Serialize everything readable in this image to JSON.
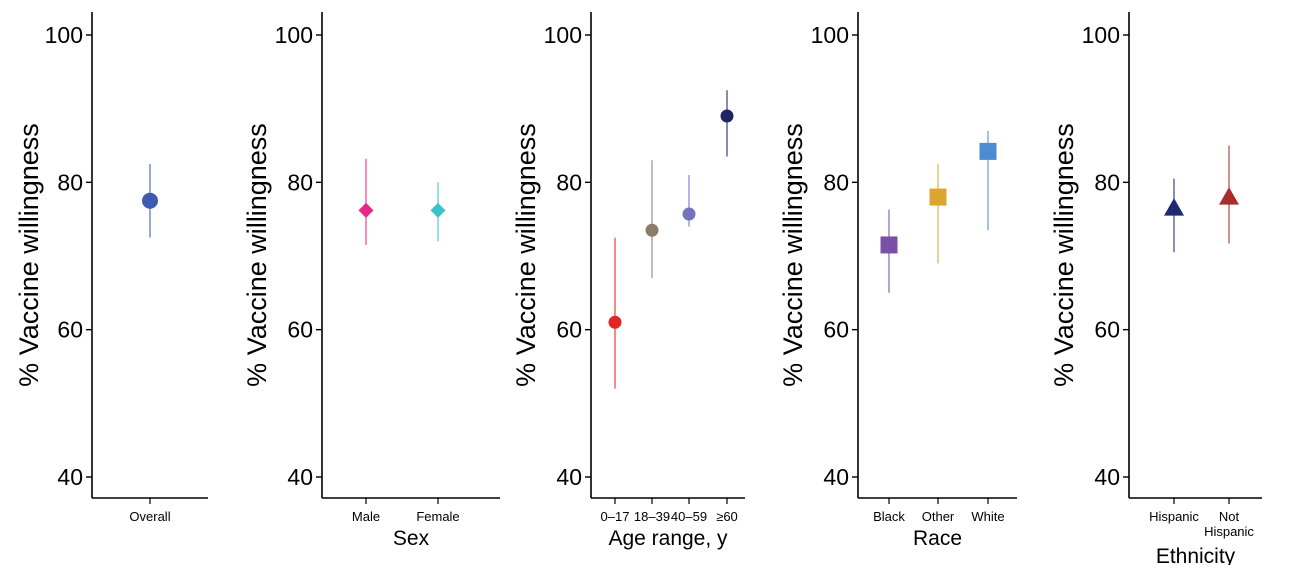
{
  "chart_data": [
    {
      "type": "scatter",
      "title": "",
      "xlabel": "",
      "ylabel": "% Vaccine willingness",
      "ylim": [
        40,
        100
      ],
      "yticks": [
        40,
        60,
        80,
        100
      ],
      "error_bars": true,
      "categories": [
        "Overall"
      ],
      "points": [
        {
          "category": "Overall",
          "value": 77.5,
          "lower": 72.5,
          "upper": 82.5,
          "color": "#3d5ab4",
          "marker": "circle"
        }
      ]
    },
    {
      "type": "scatter",
      "title": "",
      "xlabel": "Sex",
      "ylabel": "% Vaccine willingness",
      "ylim": [
        40,
        100
      ],
      "yticks": [
        40,
        60,
        80,
        100
      ],
      "error_bars": true,
      "categories": [
        "Male",
        "Female"
      ],
      "points": [
        {
          "category": "Male",
          "value": 76.2,
          "lower": 71.5,
          "upper": 83.2,
          "color": "#e6288c",
          "marker": "diamond"
        },
        {
          "category": "Female",
          "value": 76.2,
          "lower": 72.0,
          "upper": 80.0,
          "color": "#3cc3c8",
          "marker": "diamond"
        }
      ]
    },
    {
      "type": "scatter",
      "title": "",
      "xlabel": "Age range, y",
      "ylabel": "% Vaccine willingness",
      "ylim": [
        40,
        100
      ],
      "yticks": [
        40,
        60,
        80,
        100
      ],
      "error_bars": true,
      "categories": [
        "0–17",
        "18–39",
        "40–59",
        "≥60"
      ],
      "points": [
        {
          "category": "0–17",
          "value": 61.0,
          "lower": 52.0,
          "upper": 72.5,
          "color": "#e62323",
          "marker": "circle"
        },
        {
          "category": "18–39",
          "value": 73.5,
          "lower": 67.0,
          "upper": 83.0,
          "color": "#8c7d69",
          "marker": "circle"
        },
        {
          "category": "40–59",
          "value": 75.7,
          "lower": 74.0,
          "upper": 81.0,
          "color": "#7373be",
          "marker": "circle"
        },
        {
          "category": "≥60",
          "value": 89.0,
          "lower": 83.5,
          "upper": 92.5,
          "color": "#1e2364",
          "marker": "circle"
        }
      ]
    },
    {
      "type": "scatter",
      "title": "",
      "xlabel": "Race",
      "ylabel": "% Vaccine willingness",
      "ylim": [
        40,
        100
      ],
      "yticks": [
        40,
        60,
        80,
        100
      ],
      "error_bars": true,
      "categories": [
        "Black",
        "Other",
        "White"
      ],
      "points": [
        {
          "category": "Black",
          "value": 71.5,
          "lower": 65.0,
          "upper": 76.3,
          "color": "#7850a5",
          "marker": "square"
        },
        {
          "category": "Other",
          "value": 78.0,
          "lower": 69.0,
          "upper": 82.5,
          "color": "#dca52d",
          "marker": "square"
        },
        {
          "category": "White",
          "value": 84.2,
          "lower": 73.5,
          "upper": 87.0,
          "color": "#4b8cd2",
          "marker": "square"
        }
      ]
    },
    {
      "type": "scatter",
      "title": "",
      "xlabel": "Ethnicity",
      "ylabel": "% Vaccine willingness",
      "ylim": [
        40,
        100
      ],
      "yticks": [
        40,
        60,
        80,
        100
      ],
      "error_bars": true,
      "categories": [
        "Hispanic",
        "Not Hispanic"
      ],
      "points": [
        {
          "category": "Hispanic",
          "value": 76.5,
          "lower": 70.5,
          "upper": 80.5,
          "color": "#1e2873",
          "marker": "triangle"
        },
        {
          "category": "Not Hispanic",
          "value": 78.0,
          "lower": 71.7,
          "upper": 85.0,
          "color": "#aa2d2d",
          "marker": "triangle"
        }
      ]
    }
  ]
}
